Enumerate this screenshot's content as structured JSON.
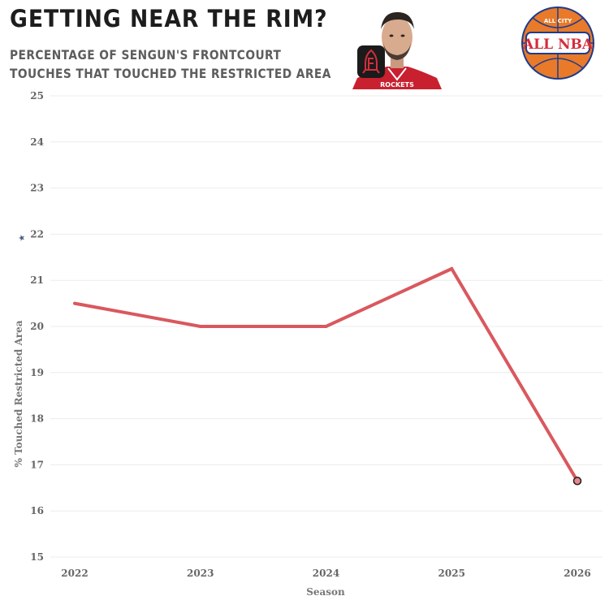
{
  "header": {
    "title": "GETTING NEAR THE RIM?",
    "subtitle_line1": "PERCENTAGE OF SENGUN'S FRONTCOURT",
    "subtitle_line2": "TOUCHES THAT TOUCHED THE RESTRICTED AREA"
  },
  "logos": {
    "team_logo_icon": "rockets-logo-icon",
    "brand_logo_icon": "all-city-all-nba-logo-icon",
    "brand_top_text": "ALL CITY",
    "brand_main_text": "ALL NBA"
  },
  "colors": {
    "line": "#d9585e",
    "marker_fill": "#e8868a",
    "grid": "#ececec",
    "title": "#1d1d1d",
    "subtitle": "#5d5d5d",
    "ball_orange": "#e87a2a",
    "ball_navy": "#1e3c8c",
    "ball_red": "#d62d3c"
  },
  "chart_data": {
    "type": "line",
    "title": "GETTING NEAR THE RIM?",
    "subtitle": "PERCENTAGE OF SENGUN'S FRONTCOURT TOUCHES THAT TOUCHED THE RESTRICTED AREA",
    "xlabel": "Season",
    "ylabel": "% Touched Restricted Area",
    "x": [
      "2022",
      "2023",
      "2024",
      "2025",
      "2026"
    ],
    "series": [
      {
        "values": [
          20.5,
          20.0,
          20.0,
          21.25,
          16.65
        ]
      }
    ],
    "ylim": [
      15,
      25
    ],
    "yticks": [
      15,
      16,
      17,
      18,
      19,
      20,
      21,
      22,
      23,
      24,
      25
    ],
    "grid": true,
    "highlight_last_point": true
  }
}
